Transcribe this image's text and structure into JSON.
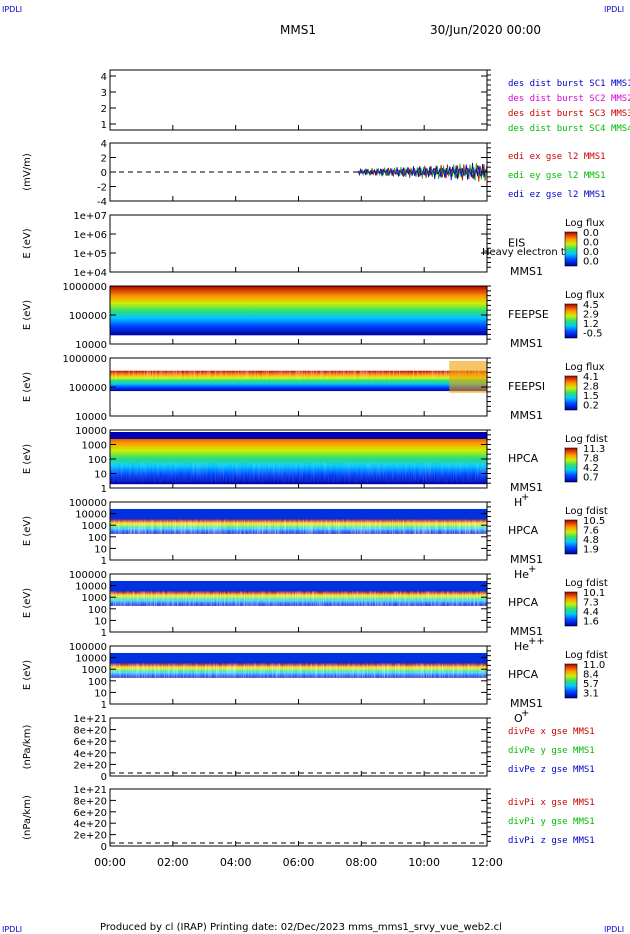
{
  "corner_label": "IPDLI",
  "header": {
    "spacecraft": "MMS1",
    "datetime": "30/Jun/2020 00:00"
  },
  "footer": {
    "text": "Produced by cl (IRAP)    Printing date: 02/Dec/2023    mms_mms1_srvy_vue_web2.cl"
  },
  "colors": {
    "blue": "#0000cc",
    "magenta": "#dd00dd",
    "red": "#cc0000",
    "green": "#00bb00",
    "black": "#000000"
  },
  "chart_data": {
    "type": "heatmap",
    "x_ticks": [
      "00:00",
      "02:00",
      "04:00",
      "06:00",
      "08:00",
      "10:00",
      "12:00"
    ],
    "x_range_hours": [
      0,
      12
    ],
    "panels": [
      {
        "id": "des-dist",
        "ylabel": "",
        "yticks": [
          "4",
          "3",
          "2",
          "1"
        ],
        "legend": [
          {
            "text": "des dist burst SC1 MMS1",
            "color": "#0000cc"
          },
          {
            "text": "des dist burst SC2 MMS2",
            "color": "#dd00dd"
          },
          {
            "text": "des dist burst SC3 MMS3",
            "color": "#cc0000"
          },
          {
            "text": "des dist burst SC4 MMS4",
            "color": "#00bb00"
          }
        ]
      },
      {
        "id": "edi-e",
        "ylabel": "(mV/m)",
        "yticks": [
          "4",
          "2",
          "0",
          "-2",
          "-4"
        ],
        "legend": [
          {
            "text": "edi ex gse l2 MMS1",
            "color": "#cc0000"
          },
          {
            "text": "edi ey gse l2 MMS1",
            "color": "#00bb00"
          },
          {
            "text": "edi ez gse l2 MMS1",
            "color": "#0000cc"
          }
        ],
        "data_start_hour": 7.9
      },
      {
        "id": "eis",
        "ylabel": "E (eV)",
        "yticks": [
          "1e+07",
          "1e+06",
          "1e+05",
          "1e+04"
        ],
        "instrument": "EIS",
        "overlay": "Heavy electron to",
        "sc": "MMS1",
        "cbar_title": "Log flux",
        "cbar_ticks": [
          "0.0",
          "0.0",
          "0.0",
          "0.0"
        ]
      },
      {
        "id": "feepse",
        "ylabel": "E (eV)",
        "yticks": [
          "1000000",
          "100000",
          "10000"
        ],
        "instrument": "FEEPSE",
        "sc": "MMS1",
        "cbar_title": "Log flux",
        "cbar_ticks": [
          "4.5",
          "2.9",
          "1.2",
          "-0.5"
        ]
      },
      {
        "id": "feepsi",
        "ylabel": "E (eV)",
        "yticks": [
          "1000000",
          "100000",
          "10000"
        ],
        "instrument": "FEEPSI",
        "sc": "MMS1",
        "cbar_title": "Log flux",
        "cbar_ticks": [
          "4.1",
          "2.8",
          "1.5",
          "0.2"
        ]
      },
      {
        "id": "hpca-h",
        "ylabel": "E (eV)",
        "yticks": [
          "10000",
          "1000",
          "100",
          "10",
          "1"
        ],
        "instrument": "HPCA",
        "sc": "MMS1",
        "species": "H",
        "charge": "+",
        "cbar_title": "Log fdist",
        "cbar_ticks": [
          "11.3",
          "7.8",
          "4.2",
          "0.7"
        ]
      },
      {
        "id": "hpca-he",
        "ylabel": "E (eV)",
        "yticks": [
          "100000",
          "10000",
          "1000",
          "100",
          "10",
          "1"
        ],
        "instrument": "HPCA",
        "sc": "MMS1",
        "species": "He",
        "charge": "+",
        "cbar_title": "Log fdist",
        "cbar_ticks": [
          "10.5",
          "7.6",
          "4.8",
          "1.9"
        ]
      },
      {
        "id": "hpca-he2",
        "ylabel": "E (eV)",
        "yticks": [
          "100000",
          "10000",
          "1000",
          "100",
          "10",
          "1"
        ],
        "instrument": "HPCA",
        "sc": "MMS1",
        "species": "He",
        "charge": "++",
        "cbar_title": "Log fdist",
        "cbar_ticks": [
          "10.1",
          "7.3",
          "4.4",
          "1.6"
        ]
      },
      {
        "id": "hpca-o",
        "ylabel": "E (eV)",
        "yticks": [
          "100000",
          "10000",
          "1000",
          "100",
          "10",
          "1"
        ],
        "instrument": "HPCA",
        "sc": "MMS1",
        "species": "O",
        "charge": "+",
        "cbar_title": "Log fdist",
        "cbar_ticks": [
          "11.0",
          "8.4",
          "5.7",
          "3.1"
        ]
      },
      {
        "id": "divpe",
        "ylabel": "(nPa/km)",
        "yticks": [
          "1e+21",
          "8e+20",
          "6e+20",
          "4e+20",
          "2e+20",
          "0"
        ],
        "legend": [
          {
            "text": "divPe x gse MMS1",
            "color": "#cc0000"
          },
          {
            "text": "divPe y gse MMS1",
            "color": "#00bb00"
          },
          {
            "text": "divPe z gse MMS1",
            "color": "#0000cc"
          }
        ]
      },
      {
        "id": "divpi",
        "ylabel": "(nPa/km)",
        "yticks": [
          "1e+21",
          "8e+20",
          "6e+20",
          "4e+20",
          "2e+20",
          "0"
        ],
        "legend": [
          {
            "text": "divPi x gse MMS1",
            "color": "#cc0000"
          },
          {
            "text": "divPi y gse MMS1",
            "color": "#00bb00"
          },
          {
            "text": "divPi z gse MMS1",
            "color": "#0000cc"
          }
        ]
      }
    ]
  }
}
